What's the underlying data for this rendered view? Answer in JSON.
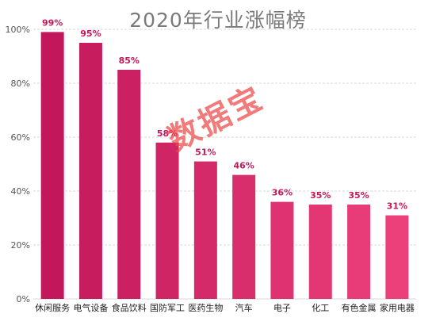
{
  "chart_data": {
    "type": "bar",
    "title": "2020年行业涨幅榜",
    "xlabel": "",
    "ylabel": "",
    "ylim": [
      0,
      100
    ],
    "y_tick_labels": [
      "0%",
      "20%",
      "40%",
      "60%",
      "80%",
      "100%"
    ],
    "grid": true,
    "categories": [
      "休闲服务",
      "电气设备",
      "食品饮料",
      "国防军工",
      "医药生物",
      "汽车",
      "电子",
      "化工",
      "有色金属",
      "家用电器"
    ],
    "values": [
      99,
      95,
      85,
      58,
      51,
      46,
      36,
      35,
      35,
      31
    ],
    "data_labels": [
      "99%",
      "95%",
      "85%",
      "58%",
      "51%",
      "46%",
      "36%",
      "35%",
      "35%",
      "31%"
    ],
    "colors": {
      "bar_dark": "#c2185b",
      "bar_light": "#ec407a",
      "label": "#c2185b",
      "grid": "#d9d9d9"
    }
  },
  "watermark": "数据宝"
}
